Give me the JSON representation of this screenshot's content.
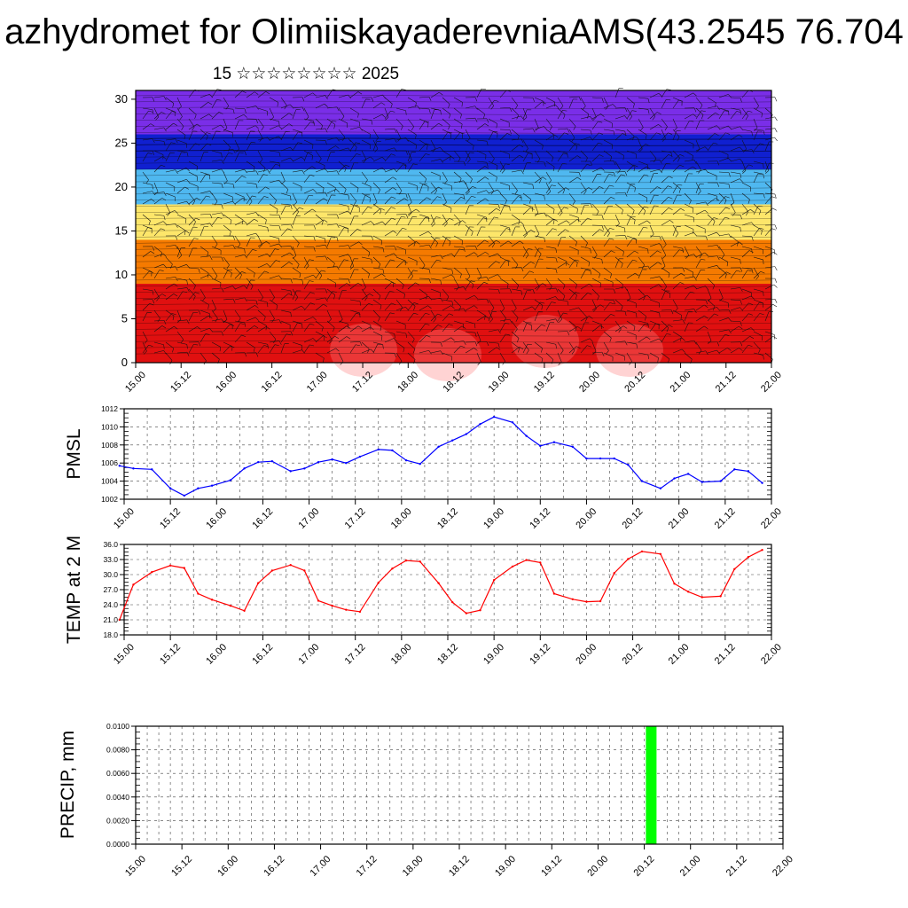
{
  "title": "azhydromet for OlimiiskayaderevniaAMS(43.2545 76.704",
  "subtitle": "15 ☆☆☆☆☆☆☆☆ 2025",
  "x_ticks": [
    "15.00",
    "15.12",
    "16.00",
    "16.12",
    "17.00",
    "17.12",
    "18.00",
    "18.12",
    "19.00",
    "19.12",
    "20.00",
    "20.12",
    "21.00",
    "21.12",
    "22.00"
  ],
  "colors": {
    "pmsl_line": "#0000ff",
    "temp_line": "#ff0000",
    "precip_bar": "#00ff00"
  },
  "chart_data": [
    {
      "type": "heatmap",
      "y_ticks": [
        "0",
        "5",
        "10",
        "15",
        "20",
        "25",
        "30"
      ],
      "ylim": [
        0,
        31
      ],
      "x_range": [
        0,
        14
      ],
      "overlay": "wind-barbs",
      "color_bands": [
        {
          "from": 0,
          "to": 9,
          "color": "#e01010"
        },
        {
          "from": 9,
          "to": 14,
          "color": "#f57a00"
        },
        {
          "from": 14,
          "to": 18,
          "color": "#fde66a"
        },
        {
          "from": 18,
          "to": 22,
          "color": "#4fb8f0"
        },
        {
          "from": 22,
          "to": 26,
          "color": "#1020d0"
        },
        {
          "from": 26,
          "to": 31,
          "color": "#7a2ee8"
        }
      ]
    },
    {
      "type": "line",
      "ylabel": "PMSL",
      "y_ticks": [
        "1012",
        "1010",
        "1008",
        "1006",
        "1004",
        "1002"
      ],
      "ylim": [
        1002,
        1012
      ],
      "x_range": [
        0,
        14
      ],
      "x": [
        -0.1,
        0.2,
        0.6,
        1.0,
        1.3,
        1.6,
        1.9,
        2.3,
        2.6,
        2.9,
        3.2,
        3.6,
        3.9,
        4.2,
        4.5,
        4.8,
        5.1,
        5.5,
        5.8,
        6.1,
        6.4,
        6.8,
        7.1,
        7.4,
        7.7,
        8.0,
        8.4,
        8.7,
        9.0,
        9.3,
        9.7,
        10.0,
        10.3,
        10.6,
        10.9,
        11.2,
        11.6,
        11.9,
        12.2,
        12.5,
        12.9,
        13.2,
        13.5,
        13.8
      ],
      "values": [
        1005.7,
        1005.4,
        1005.3,
        1003.2,
        1002.4,
        1003.2,
        1003.5,
        1004.1,
        1005.4,
        1006.1,
        1006.2,
        1005.1,
        1005.4,
        1006.1,
        1006.4,
        1006.0,
        1006.7,
        1007.5,
        1007.4,
        1006.3,
        1005.9,
        1007.8,
        1008.5,
        1009.2,
        1010.3,
        1011.1,
        1010.5,
        1009.0,
        1007.9,
        1008.3,
        1007.8,
        1006.5,
        1006.5,
        1006.5,
        1005.8,
        1004.0,
        1003.2,
        1004.3,
        1004.8,
        1003.9,
        1004.0,
        1005.3,
        1005.1,
        1003.8
      ]
    },
    {
      "type": "line",
      "ylabel": "TEMP at 2 M",
      "y_ticks": [
        "36.0",
        "33.0",
        "30.0",
        "27.0",
        "24.0",
        "21.0",
        "18.0"
      ],
      "ylim": [
        18,
        36
      ],
      "x_range": [
        0,
        14
      ],
      "x": [
        -0.1,
        0.2,
        0.6,
        1.0,
        1.3,
        1.6,
        1.9,
        2.3,
        2.6,
        2.9,
        3.2,
        3.6,
        3.9,
        4.2,
        4.5,
        4.8,
        5.1,
        5.5,
        5.8,
        6.1,
        6.4,
        6.8,
        7.1,
        7.4,
        7.7,
        8.0,
        8.4,
        8.7,
        9.0,
        9.3,
        9.7,
        10.0,
        10.3,
        10.6,
        10.9,
        11.2,
        11.6,
        11.9,
        12.2,
        12.5,
        12.9,
        13.2,
        13.5,
        13.8
      ],
      "values": [
        21.0,
        28.0,
        30.5,
        31.8,
        31.3,
        26.2,
        25.0,
        23.8,
        22.8,
        28.3,
        30.8,
        31.9,
        30.8,
        24.8,
        23.8,
        23.0,
        22.6,
        28.4,
        31.2,
        32.8,
        32.6,
        28.3,
        24.5,
        22.3,
        22.9,
        28.9,
        31.6,
        32.9,
        32.4,
        26.2,
        25.1,
        24.6,
        24.7,
        30.3,
        33.1,
        34.6,
        34.1,
        28.2,
        26.6,
        25.5,
        25.7,
        31.1,
        33.5,
        34.9
      ]
    },
    {
      "type": "bar",
      "ylabel": "PRECIP, mm",
      "y_ticks": [
        "0.0100",
        "0.0080",
        "0.0060",
        "0.0040",
        "0.0020",
        "0.0000"
      ],
      "ylim": [
        0,
        0.01
      ],
      "x_range": [
        0,
        14
      ],
      "x": [
        11.15
      ],
      "values": [
        0.01
      ]
    }
  ]
}
